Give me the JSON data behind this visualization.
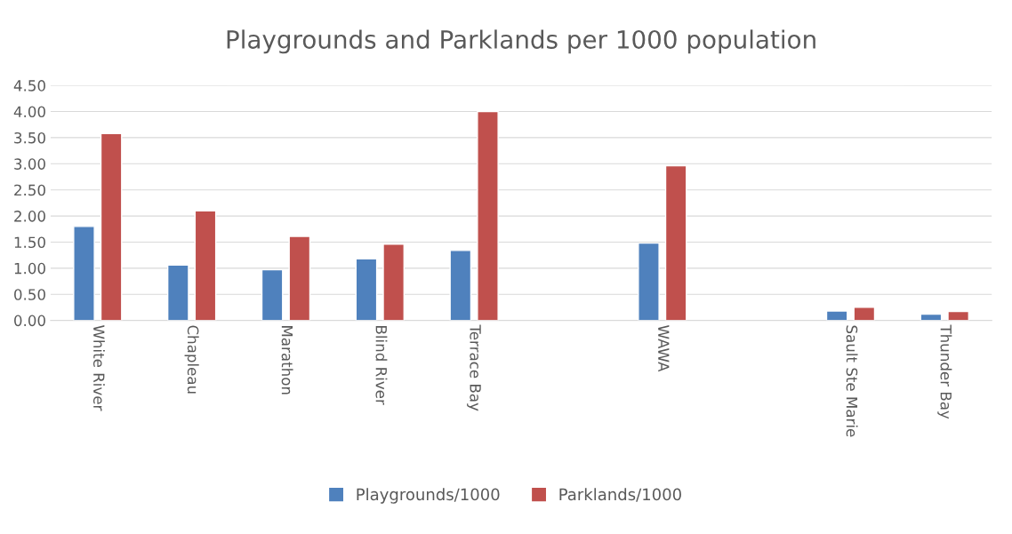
{
  "chart_data": {
    "type": "bar",
    "title": "Playgrounds and Parklands per 1000 population",
    "categories": [
      "White River",
      "Chapleau",
      "Marathon",
      "Blind River",
      "Terrace Bay",
      null,
      "WAWA",
      null,
      "Sault Ste Marie",
      "Thunder Bay"
    ],
    "series": [
      {
        "name": "Playgrounds/1000",
        "color": "#4f81bd",
        "values": [
          1.8,
          1.06,
          0.97,
          1.18,
          1.34,
          null,
          1.48,
          null,
          0.18,
          0.12
        ]
      },
      {
        "name": "Parklands/1000",
        "color": "#c0504d",
        "values": [
          3.58,
          2.1,
          1.61,
          1.46,
          4.0,
          null,
          2.96,
          null,
          0.25,
          0.17
        ]
      }
    ],
    "ylim": [
      0,
      4.5
    ],
    "yticks": [
      {
        "value": 0,
        "label": "0.00"
      },
      {
        "value": 0.5,
        "label": "0.50"
      },
      {
        "value": 1,
        "label": "1.00"
      },
      {
        "value": 1.5,
        "label": "1.50"
      },
      {
        "value": 2,
        "label": "2.00"
      },
      {
        "value": 2.5,
        "label": "2.50"
      },
      {
        "value": 3,
        "label": "3.00"
      },
      {
        "value": 3.5,
        "label": "3.50"
      },
      {
        "value": 4,
        "label": "4.00"
      },
      {
        "value": 4.5,
        "label": "4.50"
      }
    ],
    "grid": "y",
    "legend": "bottom"
  }
}
